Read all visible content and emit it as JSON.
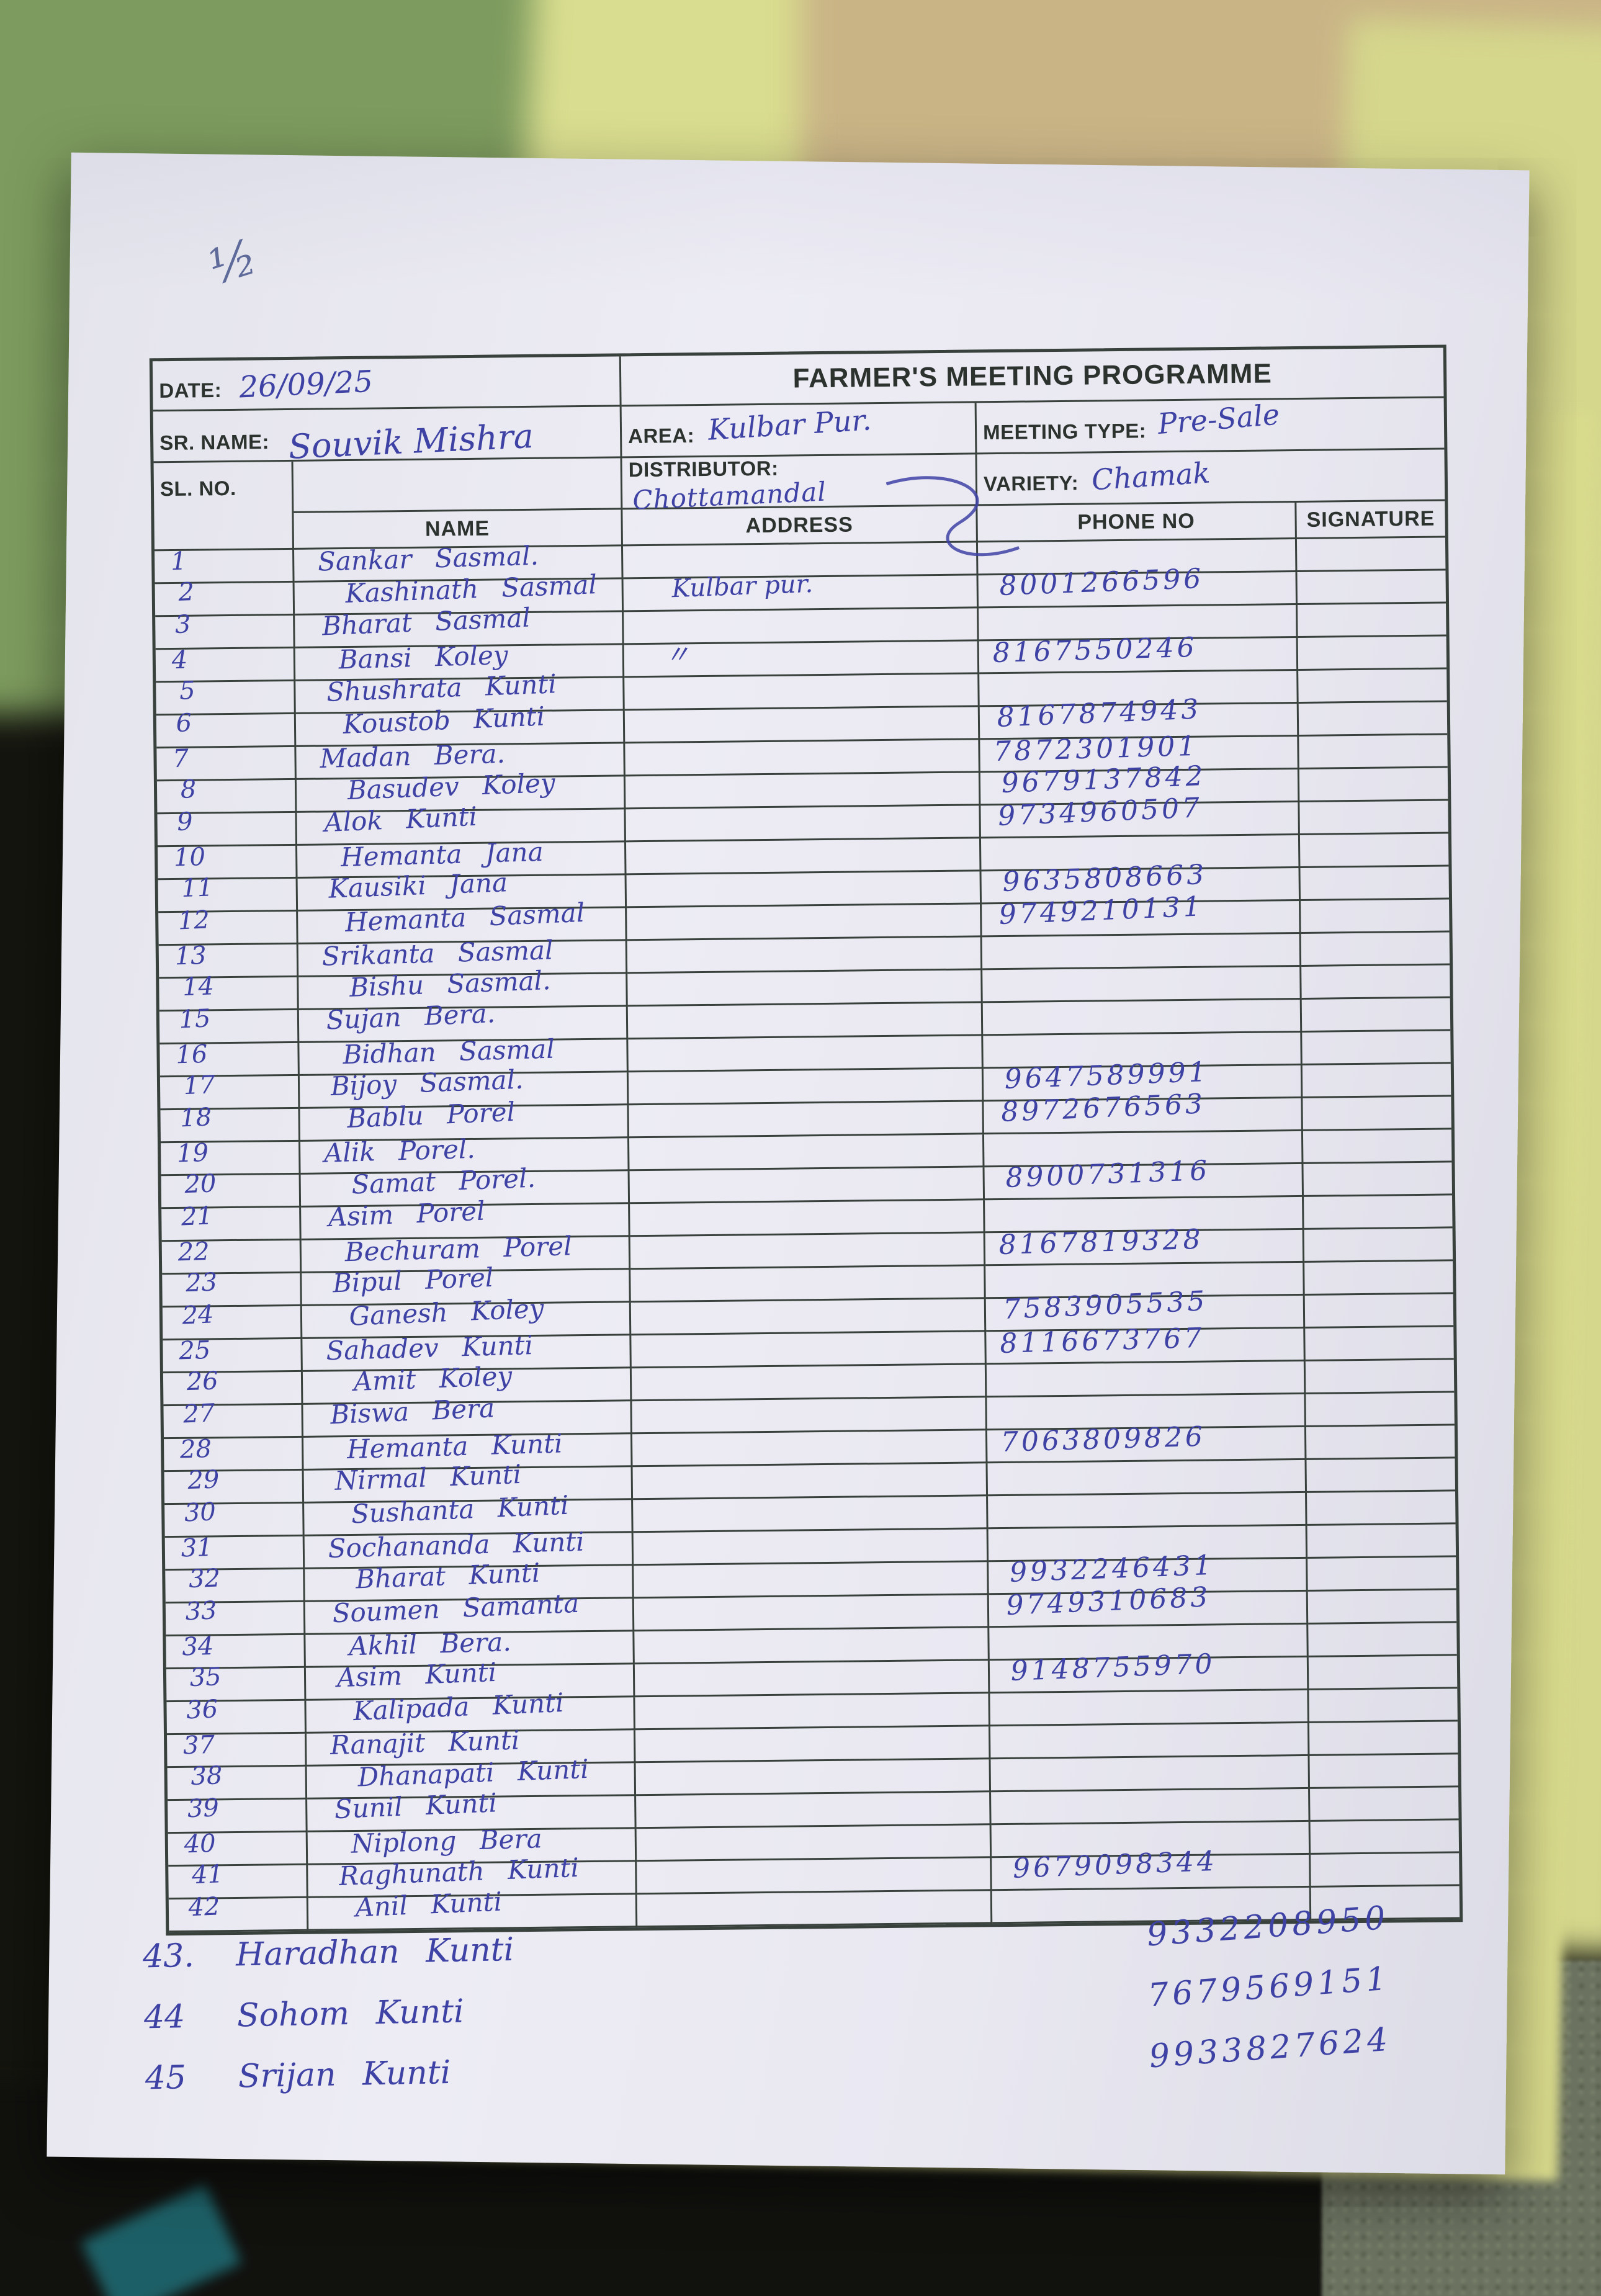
{
  "page_mark": "½",
  "form": {
    "title": "FARMER'S MEETING PROGRAMME",
    "date_label": "DATE:",
    "date_value": "26/09/25",
    "sr_name_label": "SR. NAME:",
    "sr_name_value": "Souvik Mishra",
    "area_label": "AREA:",
    "area_value": "Kulbar Pur.",
    "meeting_type_label": "MEETING TYPE:",
    "meeting_type_value": "Pre-Sale",
    "sl_no_label": "SL. NO.",
    "distributor_label": "DISTRIBUTOR:",
    "distributor_value": "Chottamandal",
    "variety_label": "VARIETY:",
    "variety_value": "Chamak"
  },
  "columns": [
    "SL. NO.",
    "NAME",
    "ADDRESS",
    "PHONE NO",
    "SIGNATURE"
  ],
  "rows": [
    {
      "sl": "1",
      "name": "Sankar Sasmal.",
      "address": "",
      "phone": "",
      "signature": ""
    },
    {
      "sl": "2",
      "name": "Kashinath Sasmal",
      "address": "Kulbar pur.",
      "phone": "8001266596",
      "signature": ""
    },
    {
      "sl": "3",
      "name": "Bharat Sasmal",
      "address": "",
      "phone": "",
      "signature": ""
    },
    {
      "sl": "4",
      "name": "Bansi Koley",
      "address": "〃",
      "phone": "8167550246",
      "signature": ""
    },
    {
      "sl": "5",
      "name": "Shushrata Kunti",
      "address": "",
      "phone": "",
      "signature": ""
    },
    {
      "sl": "6",
      "name": "Koustob Kunti",
      "address": "",
      "phone": "8167874943",
      "signature": ""
    },
    {
      "sl": "7",
      "name": "Madan Bera.",
      "address": "",
      "phone": "7872301901",
      "signature": ""
    },
    {
      "sl": "8",
      "name": "Basudev Koley",
      "address": "",
      "phone": "9679137842",
      "signature": ""
    },
    {
      "sl": "9",
      "name": "Alok Kunti",
      "address": "",
      "phone": "9734960507",
      "signature": ""
    },
    {
      "sl": "10",
      "name": "Hemanta Jana",
      "address": "",
      "phone": "",
      "signature": ""
    },
    {
      "sl": "11",
      "name": "Kausiki Jana",
      "address": "",
      "phone": "9635808663",
      "signature": ""
    },
    {
      "sl": "12",
      "name": "Hemanta Sasmal",
      "address": "",
      "phone": "9749210131",
      "signature": ""
    },
    {
      "sl": "13",
      "name": "Srikanta Sasmal",
      "address": "",
      "phone": "",
      "signature": ""
    },
    {
      "sl": "14",
      "name": "Bishu Sasmal.",
      "address": "",
      "phone": "",
      "signature": ""
    },
    {
      "sl": "15",
      "name": "Sujan Bera.",
      "address": "",
      "phone": "",
      "signature": ""
    },
    {
      "sl": "16",
      "name": "Bidhan Sasmal",
      "address": "",
      "phone": "",
      "signature": ""
    },
    {
      "sl": "17",
      "name": "Bijoy Sasmal.",
      "address": "",
      "phone": "9647589991",
      "signature": ""
    },
    {
      "sl": "18",
      "name": "Bablu Porel",
      "address": "",
      "phone": "8972676563",
      "signature": ""
    },
    {
      "sl": "19",
      "name": "Alik Porel.",
      "address": "",
      "phone": "",
      "signature": ""
    },
    {
      "sl": "20",
      "name": "Samat Porel.",
      "address": "",
      "phone": "8900731316",
      "signature": ""
    },
    {
      "sl": "21",
      "name": "Asim Porel",
      "address": "",
      "phone": "",
      "signature": ""
    },
    {
      "sl": "22",
      "name": "Bechuram Porel",
      "address": "",
      "phone": "8167819328",
      "signature": ""
    },
    {
      "sl": "23",
      "name": "Bipul Porel",
      "address": "",
      "phone": "",
      "signature": ""
    },
    {
      "sl": "24",
      "name": "Ganesh Koley",
      "address": "",
      "phone": "7583905535",
      "signature": ""
    },
    {
      "sl": "25",
      "name": "Sahadev Kunti",
      "address": "",
      "phone": "8116673767",
      "signature": ""
    },
    {
      "sl": "26",
      "name": "Amit Koley",
      "address": "",
      "phone": "",
      "signature": ""
    },
    {
      "sl": "27",
      "name": "Biswa Bera",
      "address": "",
      "phone": "",
      "signature": ""
    },
    {
      "sl": "28",
      "name": "Hemanta Kunti",
      "address": "",
      "phone": "7063809826",
      "signature": ""
    },
    {
      "sl": "29",
      "name": "Nirmal Kunti",
      "address": "",
      "phone": "",
      "signature": ""
    },
    {
      "sl": "30",
      "name": "Sushanta Kunti",
      "address": "",
      "phone": "",
      "signature": ""
    },
    {
      "sl": "31",
      "name": "Sochananda Kunti",
      "address": "",
      "phone": "",
      "signature": ""
    },
    {
      "sl": "32",
      "name": "Bharat Kunti",
      "address": "",
      "phone": "9932246431",
      "signature": ""
    },
    {
      "sl": "33",
      "name": "Soumen Samanta",
      "address": "",
      "phone": "9749310683",
      "signature": ""
    },
    {
      "sl": "34",
      "name": "Akhil Bera.",
      "address": "",
      "phone": "",
      "signature": ""
    },
    {
      "sl": "35",
      "name": "Asim Kunti",
      "address": "",
      "phone": "9148755970",
      "signature": ""
    },
    {
      "sl": "36",
      "name": "Kalipada Kunti",
      "address": "",
      "phone": "",
      "signature": ""
    },
    {
      "sl": "37",
      "name": "Ranajit Kunti",
      "address": "",
      "phone": "",
      "signature": ""
    },
    {
      "sl": "38",
      "name": "Dhanapati Kunti",
      "address": "",
      "phone": "",
      "signature": ""
    },
    {
      "sl": "39",
      "name": "Sunil Kunti",
      "address": "",
      "phone": "",
      "signature": ""
    },
    {
      "sl": "40",
      "name": "Niplong Bera",
      "address": "",
      "phone": "",
      "signature": ""
    },
    {
      "sl": "41",
      "name": "Raghunath Kunti",
      "address": "",
      "phone": "9679098344",
      "signature": ""
    },
    {
      "sl": "42",
      "name": "Anil Kunti",
      "address": "",
      "phone": "",
      "signature": ""
    }
  ],
  "extra_rows": [
    {
      "sl": "43.",
      "name": "Haradhan Kunti",
      "phone": "9332208950"
    },
    {
      "sl": "44",
      "name": "Sohom Kunti",
      "phone": "7679569151"
    },
    {
      "sl": "45",
      "name": "Srijan Kunti",
      "phone": "9933827624"
    }
  ]
}
